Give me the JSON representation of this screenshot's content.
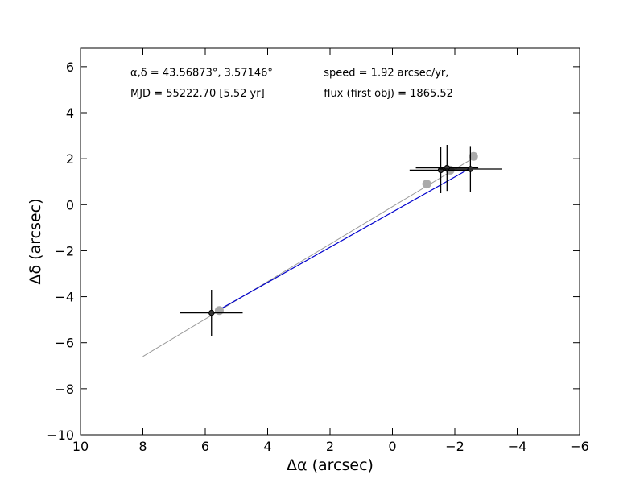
{
  "chart_data": {
    "type": "scatter",
    "title": "",
    "xlabel": "Δα (arcsec)",
    "ylabel": "Δδ (arcsec)",
    "xlim": [
      10,
      -6
    ],
    "ylim": [
      -10,
      6.8
    ],
    "x_ticks": [
      10,
      8,
      6,
      4,
      2,
      0,
      -2,
      -4,
      -6
    ],
    "x_tick_labels": [
      "10",
      "8",
      "6",
      "4",
      "2",
      "0",
      "−2",
      "−4",
      "−6"
    ],
    "y_ticks": [
      -10,
      -8,
      -6,
      -4,
      -2,
      0,
      2,
      4,
      6
    ],
    "y_tick_labels": [
      "−10",
      "−8",
      "−6",
      "−4",
      "−2",
      "0",
      "2",
      "4",
      "6"
    ],
    "grid": false,
    "annotations": [
      {
        "text": "α,δ = 43.56873°, 3.57146°",
        "x": 8.4,
        "y": 5.6
      },
      {
        "text": "MJD = 55222.70 [5.52 yr]",
        "x": 8.4,
        "y": 4.7
      },
      {
        "text": "speed = 1.92 arcsec/yr,",
        "x": 2.2,
        "y": 5.6
      },
      {
        "text": "flux (first obj) = 1865.52",
        "x": 2.2,
        "y": 4.7
      }
    ],
    "series": [
      {
        "kind": "fit-line",
        "color": "#999999",
        "points": [
          [
            8.0,
            -6.6
          ],
          [
            -2.5,
            1.95
          ]
        ]
      },
      {
        "kind": "motion-line",
        "color": "#0000cc",
        "points": [
          [
            5.6,
            -4.6
          ],
          [
            -2.45,
            1.55
          ]
        ]
      },
      {
        "kind": "predicted-positions",
        "color": "#aaaaaa",
        "points": [
          [
            5.55,
            -4.6
          ],
          [
            -1.1,
            0.9
          ],
          [
            -1.85,
            1.5
          ],
          [
            -2.6,
            2.1
          ]
        ]
      },
      {
        "kind": "measured-positions",
        "color": "#000000",
        "points": [
          {
            "x": 5.8,
            "y": -4.7,
            "xerr": 1.0,
            "yerr": 1.0
          },
          {
            "x": -1.55,
            "y": 1.5,
            "xerr": 1.0,
            "yerr": 1.0
          },
          {
            "x": -1.75,
            "y": 1.6,
            "xerr": 1.0,
            "yerr": 1.0
          },
          {
            "x": -2.5,
            "y": 1.55,
            "xerr": 1.0,
            "yerr": 1.0
          }
        ]
      }
    ]
  }
}
